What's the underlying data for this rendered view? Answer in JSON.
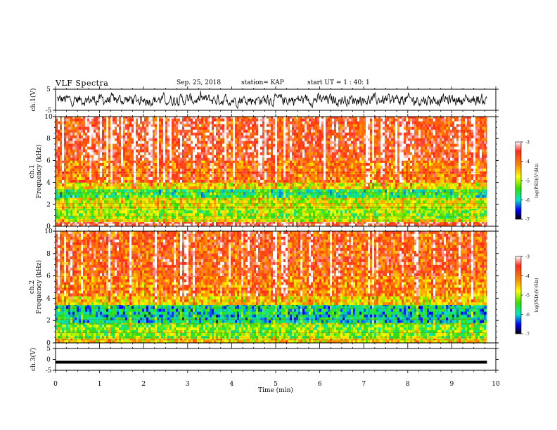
{
  "header": {
    "title": "VLF Spectra",
    "date": "Sep. 25, 2018",
    "station": "station= KAP",
    "start": "start  UT =  1 : 40: 1"
  },
  "chart_data": [
    {
      "type": "line",
      "panel": "ch1-waveform",
      "ylabel": "ch.1(V)",
      "ylim": [
        -5,
        5
      ],
      "yticks": [
        "5",
        "-5"
      ],
      "xlim": [
        0,
        10
      ],
      "color": "#000000",
      "description_values": {
        "mean": 0,
        "approx_range": [
          -3.5,
          3.5
        ]
      }
    },
    {
      "type": "heatmap",
      "panel": "ch1-spectrogram",
      "ylabel_top": "ch.1",
      "ylabel": "Frequency  (kHz)",
      "ylim": [
        0,
        10
      ],
      "yticks": [
        "0",
        "2",
        "4",
        "6",
        "8",
        "10"
      ],
      "xlim": [
        0,
        10
      ],
      "data_end_min": 9.8,
      "colorbar": {
        "label": "log(PSD)(V²/Hz)",
        "range": [
          -7,
          -3
        ],
        "ticks": [
          "-3",
          "-4",
          "-5",
          "-6",
          "-7"
        ]
      },
      "band_levels": [
        {
          "from": 0.0,
          "to": 0.4,
          "level": -3.4
        },
        {
          "from": 0.4,
          "to": 0.7,
          "level": -4.8
        },
        {
          "from": 0.7,
          "to": 1.6,
          "level": -5.2
        },
        {
          "from": 1.6,
          "to": 2.6,
          "level": -4.9
        },
        {
          "from": 2.6,
          "to": 3.4,
          "level": -5.6
        },
        {
          "from": 3.4,
          "to": 4.0,
          "level": -4.7
        },
        {
          "from": 4.0,
          "to": 6.0,
          "level": -4.0
        },
        {
          "from": 6.0,
          "to": 10.0,
          "level": -3.6
        }
      ]
    },
    {
      "type": "heatmap",
      "panel": "ch2-spectrogram",
      "ylabel_top": "ch.2",
      "ylabel": "Frequency  (kHz)",
      "ylim": [
        0,
        10
      ],
      "yticks": [
        "0",
        "2",
        "4",
        "6",
        "8",
        "10"
      ],
      "xlim": [
        0,
        10
      ],
      "data_end_min": 9.8,
      "colorbar": {
        "label": "log(PSD)(V²/Hz)",
        "range": [
          -7,
          -3
        ],
        "ticks": [
          "-3",
          "-4",
          "-5",
          "-6",
          "-7"
        ]
      },
      "band_levels": [
        {
          "from": 0.0,
          "to": 0.4,
          "level": -4.6
        },
        {
          "from": 0.4,
          "to": 1.8,
          "level": -5.3
        },
        {
          "from": 1.8,
          "to": 3.4,
          "level": -5.9
        },
        {
          "from": 3.4,
          "to": 4.2,
          "level": -4.6
        },
        {
          "from": 4.2,
          "to": 6.0,
          "level": -4.1
        },
        {
          "from": 6.0,
          "to": 10.0,
          "level": -3.8
        }
      ]
    },
    {
      "type": "line",
      "panel": "ch3-waveform",
      "ylabel": "ch.3(V)",
      "ylim": [
        -5,
        5
      ],
      "yticks": [
        "5",
        "0",
        "-5"
      ],
      "xlim": [
        0,
        10
      ],
      "xlabel": "Time  (min)",
      "xticks": [
        "0",
        "1",
        "2",
        "3",
        "4",
        "5",
        "6",
        "7",
        "8",
        "9",
        "10"
      ],
      "constant_value": -1.3,
      "data_end_min": 9.8,
      "color": "#000000"
    }
  ]
}
